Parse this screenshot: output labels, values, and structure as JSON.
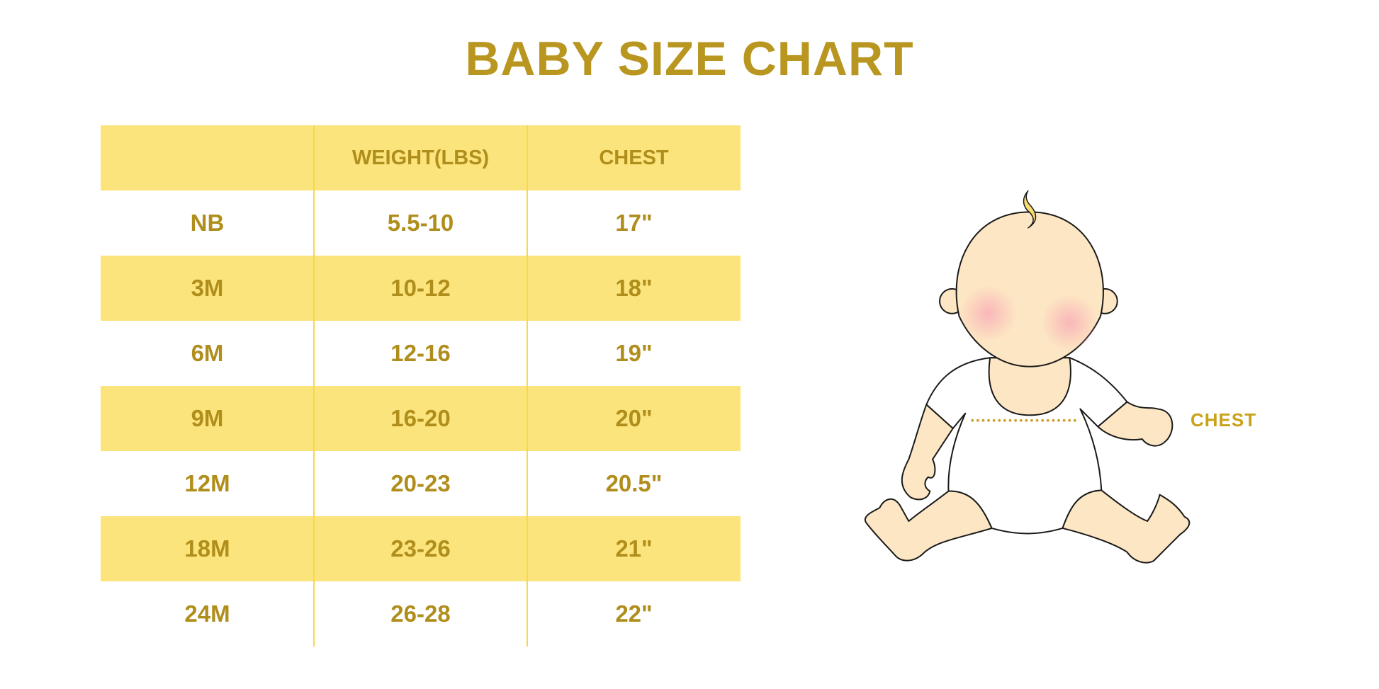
{
  "title": "BABY SIZE CHART",
  "colors": {
    "accent_text": "#B8961F",
    "row_highlight": "#FBE47C",
    "skin": "#FDE6C3",
    "hair": "#F7DC6F",
    "cheek": "#F9B4B8"
  },
  "chart_data": {
    "type": "table",
    "title": "BABY SIZE CHART",
    "columns": [
      "",
      "WEIGHT(LBS)",
      "CHEST"
    ],
    "rows": [
      [
        "NB",
        "5.5-10",
        "17\""
      ],
      [
        "3M",
        "10-12",
        "18\""
      ],
      [
        "6M",
        "12-16",
        "19\""
      ],
      [
        "9M",
        "16-20",
        "20\""
      ],
      [
        "12M",
        "20-23",
        "20.5\""
      ],
      [
        "18M",
        "23-26",
        "21\""
      ],
      [
        "24M",
        "26-28",
        "22\""
      ]
    ]
  },
  "illustration": {
    "label": "CHEST",
    "icon": "baby-chest-measurement-illustration"
  }
}
